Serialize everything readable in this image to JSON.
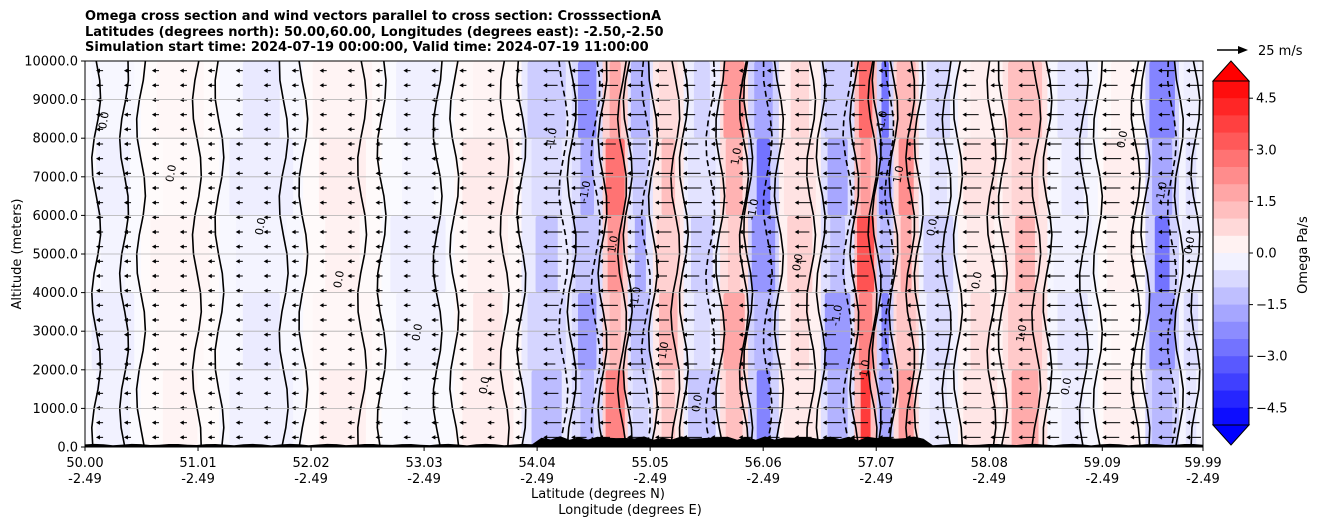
{
  "chart_data": {
    "type": "heatmap",
    "title_lines": [
      "Omega cross section and wind vectors parallel to cross section: CrosssectionA",
      "Latitudes (degrees north): 50.00,60.00, Longitudes (degrees east): -2.50,-2.50",
      "Simulation start time: 2024-07-19 00:00:00, Valid time: 2024-07-19 11:00:00"
    ],
    "ylabel": "Altitude (meters)",
    "xlabel_lat": "Latitude (degrees N)",
    "xlabel_lon": "Longitude (degrees E)",
    "ylim": [
      0,
      10000
    ],
    "yticks": [
      "0.0",
      "1000.0",
      "2000.0",
      "3000.0",
      "4000.0",
      "5000.0",
      "6000.0",
      "7000.0",
      "8000.0",
      "9000.0",
      "10000.0"
    ],
    "xrange": [
      50.0,
      59.99
    ],
    "xticks_lat": [
      "50.00",
      "51.01",
      "52.02",
      "53.03",
      "54.04",
      "55.05",
      "56.06",
      "57.07",
      "58.08",
      "59.09",
      "59.99"
    ],
    "xticks_lon": [
      "-2.49",
      "-2.49",
      "-2.49",
      "-2.49",
      "-2.49",
      "-2.49",
      "-2.49",
      "-2.49",
      "-2.49",
      "-2.49",
      "-2.49"
    ],
    "grid": "horizontal",
    "colorbar": {
      "label": "Omega Pa/s",
      "ticks": [
        "4.5",
        "3.0",
        "1.5",
        "0.0",
        "−1.5",
        "−3.0",
        "−4.5"
      ],
      "range": [
        -5,
        5
      ],
      "extend": "both",
      "colormap": "bwr"
    },
    "quiver_key": "25 m/s",
    "contour_labels": [
      "0.0",
      "1.0",
      "-1.0"
    ],
    "vertical_bands": [
      {
        "lat": 50.2,
        "omega": -0.3
      },
      {
        "lat": 50.8,
        "omega": 0.2
      },
      {
        "lat": 51.6,
        "omega": -0.4
      },
      {
        "lat": 52.3,
        "omega": 0.3
      },
      {
        "lat": 53.0,
        "omega": -0.3
      },
      {
        "lat": 53.6,
        "omega": 0.4
      },
      {
        "lat": 54.2,
        "omega": -1.2
      },
      {
        "lat": 54.5,
        "omega": -2.0
      },
      {
        "lat": 54.75,
        "omega": 2.5
      },
      {
        "lat": 54.95,
        "omega": -1.5
      },
      {
        "lat": 55.2,
        "omega": 1.3
      },
      {
        "lat": 55.5,
        "omega": -1.0
      },
      {
        "lat": 55.85,
        "omega": 1.8
      },
      {
        "lat": 56.0,
        "omega": -2.5
      },
      {
        "lat": 56.4,
        "omega": 0.8
      },
      {
        "lat": 56.75,
        "omega": -1.8
      },
      {
        "lat": 57.0,
        "omega": 3.5
      },
      {
        "lat": 57.15,
        "omega": -2.5
      },
      {
        "lat": 57.3,
        "omega": 2.0
      },
      {
        "lat": 57.6,
        "omega": -0.8
      },
      {
        "lat": 58.0,
        "omega": 0.6
      },
      {
        "lat": 58.4,
        "omega": 1.5
      },
      {
        "lat": 58.8,
        "omega": -0.5
      },
      {
        "lat": 59.3,
        "omega": 0.3
      },
      {
        "lat": 59.65,
        "omega": -2.5
      },
      {
        "lat": 59.9,
        "omega": -0.6
      }
    ]
  }
}
